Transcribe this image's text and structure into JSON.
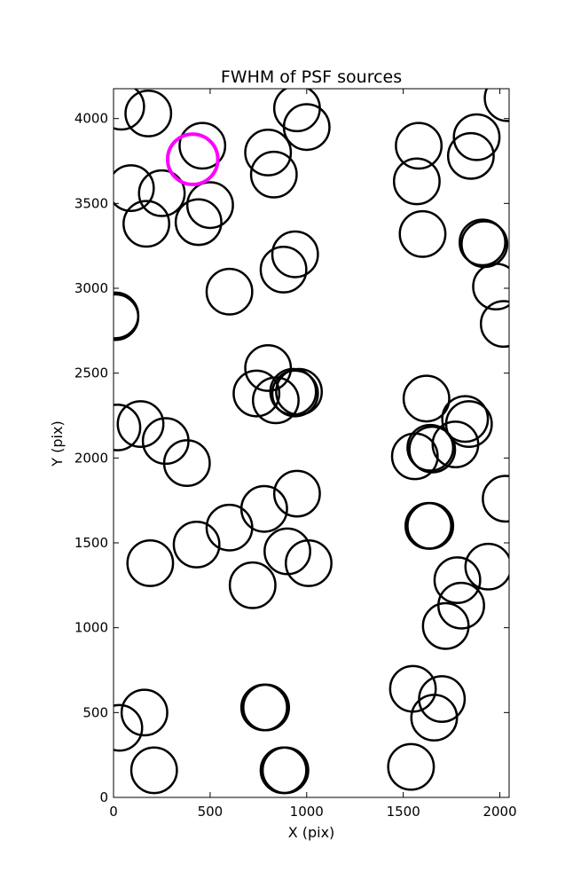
{
  "chart_data": {
    "type": "scatter",
    "title": "FWHM of PSF sources",
    "xlabel": "X (pix)",
    "ylabel": "Y (pix)",
    "xlim": [
      0,
      2048
    ],
    "ylim": [
      0,
      4176
    ],
    "xticks": [
      0,
      500,
      1000,
      1500,
      2000
    ],
    "yticks": [
      0,
      500,
      1000,
      1500,
      2000,
      2500,
      3000,
      3500,
      4000
    ],
    "grid": false,
    "marker": "open-circle",
    "series": [
      {
        "color": "#000000",
        "radius": 118,
        "points": [
          [
            40,
            4070
          ],
          [
            180,
            4030
          ],
          [
            460,
            3840
          ],
          [
            800,
            3800
          ],
          [
            1000,
            3950
          ],
          [
            950,
            4060
          ],
          [
            830,
            3670
          ],
          [
            1580,
            3840
          ],
          [
            1570,
            3630
          ],
          [
            1880,
            3890
          ],
          [
            1850,
            3780
          ],
          [
            2040,
            4120
          ],
          [
            90,
            3590
          ],
          [
            250,
            3560
          ],
          [
            500,
            3490
          ],
          [
            440,
            3390
          ],
          [
            170,
            3380
          ],
          [
            1600,
            3320
          ],
          [
            1910,
            3270
          ],
          [
            1920,
            3260
          ],
          [
            940,
            3200
          ],
          [
            880,
            3110
          ],
          [
            600,
            2980
          ],
          [
            1980,
            3010
          ],
          [
            2020,
            2790
          ],
          [
            10,
            2840
          ],
          [
            10,
            2830
          ],
          [
            800,
            2530
          ],
          [
            740,
            2380
          ],
          [
            840,
            2340
          ],
          [
            930,
            2390
          ],
          [
            960,
            2390
          ],
          [
            940,
            2380
          ],
          [
            1620,
            2350
          ],
          [
            1820,
            2230
          ],
          [
            1840,
            2200
          ],
          [
            1770,
            2080
          ],
          [
            1640,
            2060
          ],
          [
            1650,
            2050
          ],
          [
            1560,
            2010
          ],
          [
            20,
            2180
          ],
          [
            140,
            2200
          ],
          [
            270,
            2100
          ],
          [
            380,
            1970
          ],
          [
            950,
            1790
          ],
          [
            780,
            1700
          ],
          [
            600,
            1590
          ],
          [
            430,
            1490
          ],
          [
            190,
            1380
          ],
          [
            720,
            1250
          ],
          [
            900,
            1450
          ],
          [
            1010,
            1380
          ],
          [
            2030,
            1760
          ],
          [
            1630,
            1600
          ],
          [
            1640,
            1600
          ],
          [
            1940,
            1360
          ],
          [
            1780,
            1280
          ],
          [
            1800,
            1130
          ],
          [
            1720,
            1010
          ],
          [
            30,
            410
          ],
          [
            160,
            500
          ],
          [
            210,
            160
          ],
          [
            790,
            530
          ],
          [
            780,
            530
          ],
          [
            880,
            160
          ],
          [
            890,
            160
          ],
          [
            1550,
            640
          ],
          [
            1700,
            580
          ],
          [
            1660,
            470
          ],
          [
            1540,
            180
          ]
        ]
      },
      {
        "color": "#ff00ff",
        "radius": 130,
        "points": [
          [
            410,
            3760
          ]
        ]
      }
    ]
  }
}
